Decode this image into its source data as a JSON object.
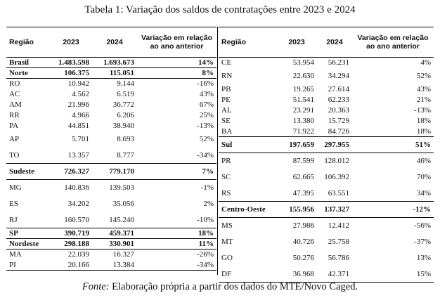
{
  "caption": "Tabela 1: Variação dos saldos de contratações entre 2023 e 2024",
  "headers": {
    "region": "Região",
    "y2023": "2023",
    "y2024": "2024",
    "variation_line1": "Variação em relação",
    "variation_line2": "ao ano anterior"
  },
  "left_rows": [
    {
      "region": "Brasil",
      "v2023": "1.483.598",
      "v2024": "1.693.673",
      "var": "14%"
    },
    {
      "region": "Norte",
      "v2023": "106.375",
      "v2024": "115.051",
      "var": "8%"
    },
    {
      "region": "RO",
      "v2023": "10.942",
      "v2024": "9.144",
      "var": "-16%"
    },
    {
      "region": "AC",
      "v2023": "4.562",
      "v2024": "6.519",
      "var": "43%"
    },
    {
      "region": "AM",
      "v2023": "21.996",
      "v2024": "36.772",
      "var": "67%"
    },
    {
      "region": "RR",
      "v2023": "4.966",
      "v2024": "6.206",
      "var": "25%"
    },
    {
      "region": "PA",
      "v2023": "44.851",
      "v2024": "38.940",
      "var": "-13%"
    },
    {
      "region": "AP",
      "v2023": "5.701",
      "v2024": "8.693",
      "var": "52%"
    },
    {
      "region": "TO",
      "v2023": "13.357",
      "v2024": "8.777",
      "var": "-34%"
    },
    {
      "region": "Sudeste",
      "v2023": "726.327",
      "v2024": "779.170",
      "var": "7%"
    },
    {
      "region": "MG",
      "v2023": "140.836",
      "v2024": "139.503",
      "var": "-1%"
    },
    {
      "region": "ES",
      "v2023": "34.202",
      "v2024": "35.056",
      "var": "2%"
    },
    {
      "region": "RJ",
      "v2023": "160.570",
      "v2024": "145.240",
      "var": "-10%"
    },
    {
      "region": "SP",
      "v2023": "390.719",
      "v2024": "459.371",
      "var": "18%"
    },
    {
      "region": "Nordeste",
      "v2023": "298.188",
      "v2024": "330.901",
      "var": "11%"
    },
    {
      "region": "MA",
      "v2023": "22.039",
      "v2024": "16.327",
      "var": "-26%"
    },
    {
      "region": "PI",
      "v2023": "20.166",
      "v2024": "13.384",
      "var": "-34%"
    }
  ],
  "right_rows": [
    {
      "region": "CE",
      "v2023": "53.954",
      "v2024": "56.231",
      "var": "4%"
    },
    {
      "region": "RN",
      "v2023": "22.630",
      "v2024": "34.294",
      "var": "52%"
    },
    {
      "region": "PB",
      "v2023": "19.265",
      "v2024": "27.614",
      "var": "43%"
    },
    {
      "region": "PE",
      "v2023": "51.541",
      "v2024": "62.233",
      "var": "21%"
    },
    {
      "region": "AL",
      "v2023": "23.291",
      "v2024": "20.363",
      "var": "-13%"
    },
    {
      "region": "SE",
      "v2023": "13.380",
      "v2024": "15.729",
      "var": "18%"
    },
    {
      "region": "BA",
      "v2023": "71.922",
      "v2024": "84.726",
      "var": "18%"
    },
    {
      "region": "Sul",
      "v2023": "197.659",
      "v2024": "297.955",
      "var": "51%"
    },
    {
      "region": "PR",
      "v2023": "87.599",
      "v2024": "128.012",
      "var": "46%"
    },
    {
      "region": "SC",
      "v2023": "62.665",
      "v2024": "106.392",
      "var": "70%"
    },
    {
      "region": "RS",
      "v2023": "47.395",
      "v2024": "63.551",
      "var": "34%"
    },
    {
      "region": "Centro-Oeste",
      "v2023": "155.956",
      "v2024": "137.327",
      "var": "-12%"
    },
    {
      "region": "MS",
      "v2023": "27.986",
      "v2024": "12.412",
      "var": "-56%"
    },
    {
      "region": "MT",
      "v2023": "40.726",
      "v2024": "25.758",
      "var": "-37%"
    },
    {
      "region": "GO",
      "v2023": "50.276",
      "v2024": "56.786",
      "var": "13%"
    },
    {
      "region": "DF",
      "v2023": "36.968",
      "v2024": "42.371",
      "var": "15%"
    }
  ],
  "source": {
    "label": "Fonte:",
    "text": " Elaboração própria a partir dos dados do MTE/Novo Caged."
  }
}
